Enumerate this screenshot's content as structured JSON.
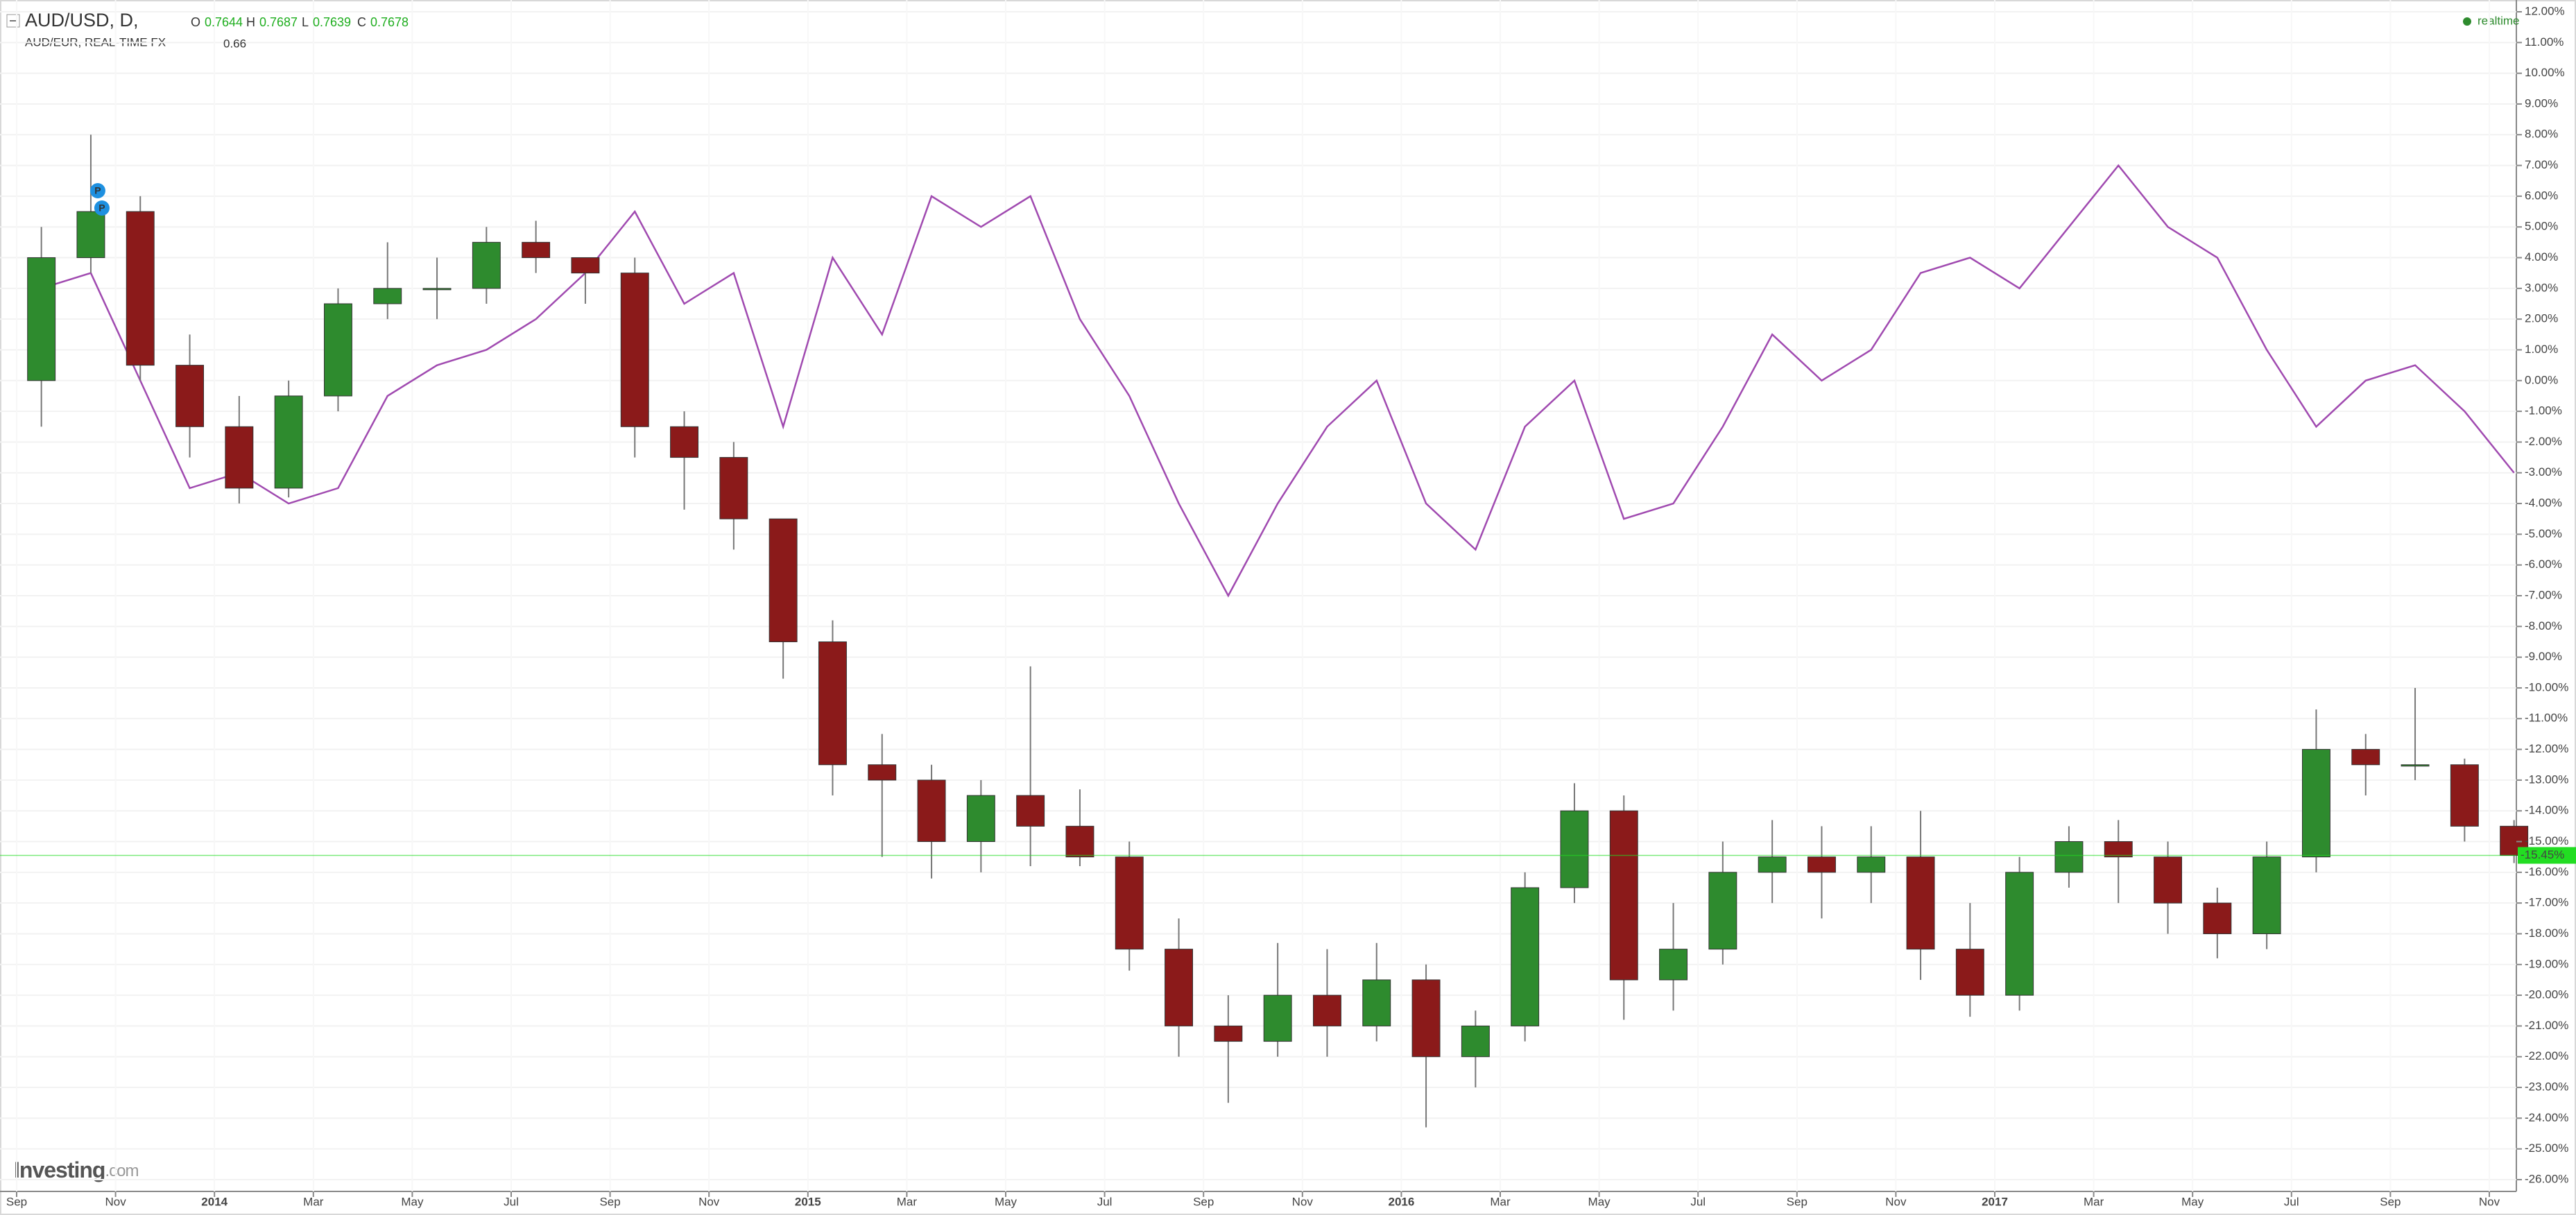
{
  "chart_data": {
    "type": "candlestick",
    "status": "realtime",
    "watermark": [
      "Investing",
      ".com"
    ],
    "markers": [
      "P",
      "P"
    ],
    "grid": true,
    "x": [
      "2013-09",
      "2013-10",
      "2013-11",
      "2013-12",
      "2014-01",
      "2014-02",
      "2014-03",
      "2014-04",
      "2014-05",
      "2014-06",
      "2014-07",
      "2014-08",
      "2014-09",
      "2014-10",
      "2014-11",
      "2014-12",
      "2015-01",
      "2015-02",
      "2015-03",
      "2015-04",
      "2015-05",
      "2015-06",
      "2015-07",
      "2015-08",
      "2015-09",
      "2015-10",
      "2015-11",
      "2015-12",
      "2016-01",
      "2016-02",
      "2016-03",
      "2016-04",
      "2016-05",
      "2016-06",
      "2016-07",
      "2016-08",
      "2016-09",
      "2016-10",
      "2016-11",
      "2016-12",
      "2017-01",
      "2017-02",
      "2017-03",
      "2017-04",
      "2017-05",
      "2017-06",
      "2017-07",
      "2017-08",
      "2017-09",
      "2017-10",
      "2017-11"
    ],
    "xlim": [
      "2013-09",
      "2017-11"
    ],
    "xticks": [
      {
        "value": "2013-09",
        "label": "Sep"
      },
      {
        "value": "2013-11",
        "label": "Nov"
      },
      {
        "value": "2014-01",
        "label": "2014"
      },
      {
        "value": "2014-03",
        "label": "Mar"
      },
      {
        "value": "2014-05",
        "label": "May"
      },
      {
        "value": "2014-07",
        "label": "Jul"
      },
      {
        "value": "2014-09",
        "label": "Sep"
      },
      {
        "value": "2014-11",
        "label": "Nov"
      },
      {
        "value": "2015-01",
        "label": "2015"
      },
      {
        "value": "2015-03",
        "label": "Mar"
      },
      {
        "value": "2015-05",
        "label": "May"
      },
      {
        "value": "2015-07",
        "label": "Jul"
      },
      {
        "value": "2015-09",
        "label": "Sep"
      },
      {
        "value": "2015-11",
        "label": "Nov"
      },
      {
        "value": "2016-01",
        "label": "2016"
      },
      {
        "value": "2016-03",
        "label": "Mar"
      },
      {
        "value": "2016-05",
        "label": "May"
      },
      {
        "value": "2016-07",
        "label": "Jul"
      },
      {
        "value": "2016-09",
        "label": "Sep"
      },
      {
        "value": "2016-11",
        "label": "Nov"
      },
      {
        "value": "2017-01",
        "label": "2017"
      },
      {
        "value": "2017-03",
        "label": "Mar"
      },
      {
        "value": "2017-05",
        "label": "May"
      },
      {
        "value": "2017-07",
        "label": "Jul"
      },
      {
        "value": "2017-09",
        "label": "Sep"
      },
      {
        "value": "2017-11",
        "label": "Nov"
      }
    ],
    "ylim": [
      -26,
      12
    ],
    "yticks": [
      {
        "value": 12,
        "label": "12.00%"
      },
      {
        "value": 11,
        "label": "11.00%"
      },
      {
        "value": 10,
        "label": "10.00%"
      },
      {
        "value": 9,
        "label": "9.00%"
      },
      {
        "value": 8,
        "label": "8.00%"
      },
      {
        "value": 7,
        "label": "7.00%"
      },
      {
        "value": 6,
        "label": "6.00%"
      },
      {
        "value": 5,
        "label": "5.00%"
      },
      {
        "value": 4,
        "label": "4.00%"
      },
      {
        "value": 3,
        "label": "3.00%"
      },
      {
        "value": 2,
        "label": "2.00%"
      },
      {
        "value": 1,
        "label": "1.00%"
      },
      {
        "value": 0,
        "label": "0.00%"
      },
      {
        "value": -1,
        "label": "-1.00%"
      },
      {
        "value": -2,
        "label": "-2.00%"
      },
      {
        "value": -3,
        "label": "-3.00%"
      },
      {
        "value": -4,
        "label": "-4.00%"
      },
      {
        "value": -5,
        "label": "-5.00%"
      },
      {
        "value": -6,
        "label": "-6.00%"
      },
      {
        "value": -7,
        "label": "-7.00%"
      },
      {
        "value": -8,
        "label": "-8.00%"
      },
      {
        "value": -9,
        "label": "-9.00%"
      },
      {
        "value": -10,
        "label": "-10.00%"
      },
      {
        "value": -11,
        "label": "-11.00%"
      },
      {
        "value": -12,
        "label": "-12.00%"
      },
      {
        "value": -13,
        "label": "-13.00%"
      },
      {
        "value": -14,
        "label": "-14.00%"
      },
      {
        "value": -15,
        "label": "-15.00%"
      },
      {
        "value": -16,
        "label": "-16.00%"
      },
      {
        "value": -17,
        "label": "-17.00%"
      },
      {
        "value": -18,
        "label": "-18.00%"
      },
      {
        "value": -19,
        "label": "-19.00%"
      },
      {
        "value": -20,
        "label": "-20.00%"
      },
      {
        "value": -21,
        "label": "-21.00%"
      },
      {
        "value": -22,
        "label": "-22.00%"
      },
      {
        "value": -23,
        "label": "-23.00%"
      },
      {
        "value": -24,
        "label": "-24.00%"
      },
      {
        "value": -25,
        "label": "-25.00%"
      },
      {
        "value": -26,
        "label": "-26.00%"
      }
    ],
    "series": [
      {
        "name": "AUD/USD, D,",
        "type": "candlestick",
        "up_color": "#2e8b2e",
        "down_color": "#8b1a1a",
        "quote": {
          "O": 0.7644,
          "H": 0.7687,
          "L": 0.7639,
          "C": 0.7678
        },
        "last_label": "-15.45%",
        "last_color": "#22dd22",
        "open": [
          0,
          4,
          5.5,
          0.5,
          -1.5,
          -3.5,
          -0.5,
          2.5,
          3,
          3,
          4.5,
          4,
          3.5,
          -1.5,
          -2.5,
          -4.5,
          -8.5,
          -12.5,
          -13,
          -15,
          -13.5,
          -14.5,
          -15.5,
          -18.5,
          -21,
          -21.5,
          -20,
          -21,
          -19.5,
          -22,
          -21,
          -16.5,
          -14,
          -19.5,
          -18.5,
          -16,
          -15.5,
          -16,
          -15.5,
          -18.5,
          -20,
          -16,
          -15,
          -15.5,
          -17,
          -18,
          -15.5,
          -12,
          -12.5,
          -12.5,
          -14.5
        ],
        "high": [
          5,
          8,
          6,
          1.5,
          -0.5,
          0,
          3,
          4.5,
          4,
          5,
          5.2,
          4,
          4,
          -1,
          -2,
          -4.5,
          -7.8,
          -11.5,
          -12.5,
          -13,
          -9.3,
          -13.3,
          -15,
          -17.5,
          -20,
          -18.3,
          -18.5,
          -18.3,
          -19,
          -20.5,
          -16,
          -13.1,
          -13.5,
          -17,
          -15,
          -14.3,
          -14.5,
          -14.5,
          -14,
          -17,
          -15.5,
          -14.5,
          -14.3,
          -15,
          -16.5,
          -15,
          -10.7,
          -11.5,
          -10,
          -12.3,
          -14.3
        ],
        "low": [
          -1.5,
          3.5,
          0,
          -2.5,
          -4,
          -3.8,
          -1,
          2,
          2,
          2.5,
          3.5,
          2.5,
          -2.5,
          -4.2,
          -5.5,
          -9.7,
          -13.5,
          -15.5,
          -16.2,
          -16,
          -15.8,
          -15.8,
          -19.2,
          -22,
          -23.5,
          -22,
          -22,
          -21.5,
          -24.3,
          -23,
          -21.5,
          -17,
          -20.8,
          -20.5,
          -19,
          -17,
          -17.5,
          -17,
          -19.5,
          -20.7,
          -20.5,
          -16.5,
          -17,
          -18,
          -18.8,
          -18.5,
          -16,
          -13.5,
          -13,
          -15,
          -15.7
        ],
        "close": [
          4,
          5.5,
          0.5,
          -1.5,
          -3.5,
          -0.5,
          2.5,
          3,
          3,
          4.5,
          4,
          3.5,
          -1.5,
          -2.5,
          -4.5,
          -8.5,
          -12.5,
          -13,
          -15,
          -13.5,
          -14.5,
          -15.5,
          -18.5,
          -21,
          -21.5,
          -20,
          -21,
          -19.5,
          -22,
          -21,
          -16.5,
          -14,
          -19.5,
          -18.5,
          -16,
          -15.5,
          -16,
          -15.5,
          -18.5,
          -20,
          -16,
          -15,
          -15.5,
          -17,
          -18,
          -15.5,
          -12,
          -12.5,
          -12.5,
          -14.5,
          -15.45
        ]
      },
      {
        "name": "AUD/EUR, REAL-TIME FX",
        "type": "line",
        "color": "#a04ab0",
        "quote": 0.66,
        "values": [
          3,
          3.5,
          0,
          -3.5,
          -3,
          -4,
          -3.5,
          -0.5,
          0.5,
          1,
          2,
          3.5,
          5.5,
          2.5,
          3.5,
          -1.5,
          4,
          1.5,
          6,
          5,
          6,
          2,
          -0.5,
          -4,
          -7,
          -4,
          -1.5,
          0,
          -4,
          -5.5,
          -1.5,
          0,
          -4.5,
          -4,
          -1.5,
          1.5,
          0,
          1,
          3.5,
          4,
          3,
          5,
          7,
          5,
          4,
          1,
          -1.5,
          0,
          0.5,
          -1,
          -3
        ]
      }
    ]
  }
}
